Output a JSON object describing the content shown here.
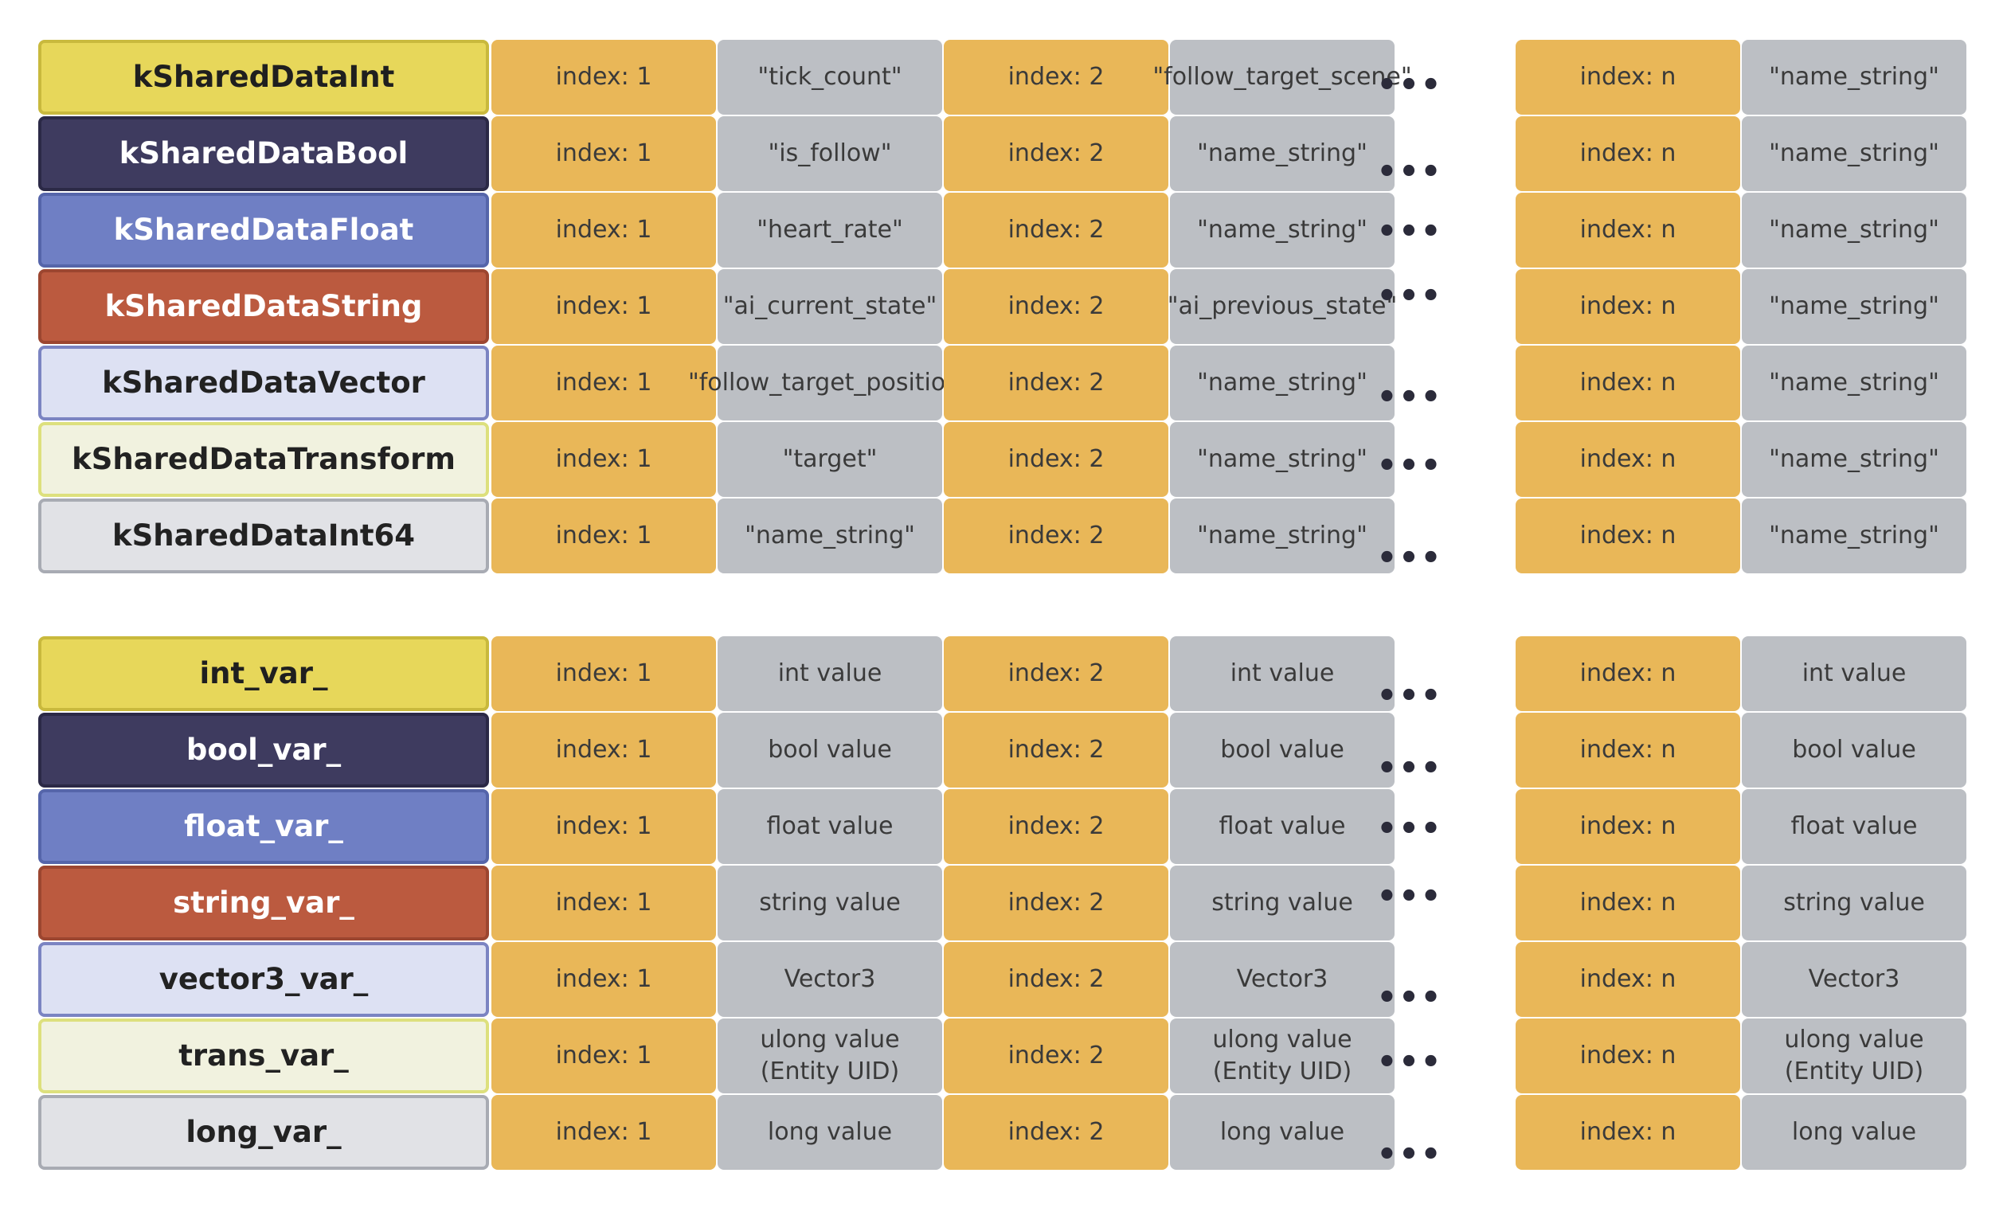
{
  "ellipsis": "•••",
  "tables": [
    {
      "rows": [
        {
          "label": "kSharedDataInt",
          "theme": "yellow",
          "cells": [
            "index: 1",
            "\"tick_count\"",
            "index: 2",
            "\"follow_target_scene\"",
            "index: n",
            "\"name_string\""
          ]
        },
        {
          "label": "kSharedDataBool",
          "theme": "navy",
          "cells": [
            "index: 1",
            "\"is_follow\"",
            "index: 2",
            "\"name_string\"",
            "index: n",
            "\"name_string\""
          ]
        },
        {
          "label": "kSharedDataFloat",
          "theme": "blue",
          "cells": [
            "index: 1",
            "\"heart_rate\"",
            "index: 2",
            "\"name_string\"",
            "index: n",
            "\"name_string\""
          ]
        },
        {
          "label": "kSharedDataString",
          "theme": "red",
          "cells": [
            "index: 1",
            "\"ai_current_state\"",
            "index: 2",
            "\"ai_previous_state\"",
            "index: n",
            "\"name_string\""
          ]
        },
        {
          "label": "kSharedDataVector",
          "theme": "lav",
          "cells": [
            "index: 1",
            "\"follow_target_position\"",
            "index: 2",
            "\"name_string\"",
            "index: n",
            "\"name_string\""
          ]
        },
        {
          "label": "kSharedDataTransform",
          "theme": "cream",
          "cells": [
            "index: 1",
            "\"target\"",
            "index: 2",
            "\"name_string\"",
            "index: n",
            "\"name_string\""
          ]
        },
        {
          "label": "kSharedDataInt64",
          "theme": "grey",
          "cells": [
            "index: 1",
            "\"name_string\"",
            "index: 2",
            "\"name_string\"",
            "index: n",
            "\"name_string\""
          ]
        }
      ]
    },
    {
      "rows": [
        {
          "label": "int_var_",
          "theme": "yellow",
          "cells": [
            "index: 1",
            "int value",
            "index: 2",
            "int value",
            "index: n",
            "int value"
          ]
        },
        {
          "label": "bool_var_",
          "theme": "navy",
          "cells": [
            "index: 1",
            "bool value",
            "index: 2",
            "bool value",
            "index: n",
            "bool value"
          ]
        },
        {
          "label": "float_var_",
          "theme": "blue",
          "cells": [
            "index: 1",
            "float value",
            "index: 2",
            "float value",
            "index: n",
            "float value"
          ]
        },
        {
          "label": "string_var_",
          "theme": "red",
          "cells": [
            "index: 1",
            "string value",
            "index: 2",
            "string value",
            "index: n",
            "string value"
          ]
        },
        {
          "label": "vector3_var_",
          "theme": "lav",
          "cells": [
            "index: 1",
            "Vector3",
            "index: 2",
            "Vector3",
            "index: n",
            "Vector3"
          ]
        },
        {
          "label": "trans_var_",
          "theme": "cream",
          "cells": [
            "index: 1",
            "ulong value (Entity UID)",
            "index: 2",
            "ulong value (Entity UID)",
            "index: n",
            "ulong value (Entity UID)"
          ]
        },
        {
          "label": "long_var_",
          "theme": "grey",
          "cells": [
            "index: 1",
            "long value",
            "index: 2",
            "long value",
            "index: n",
            "long value"
          ]
        }
      ]
    }
  ]
}
